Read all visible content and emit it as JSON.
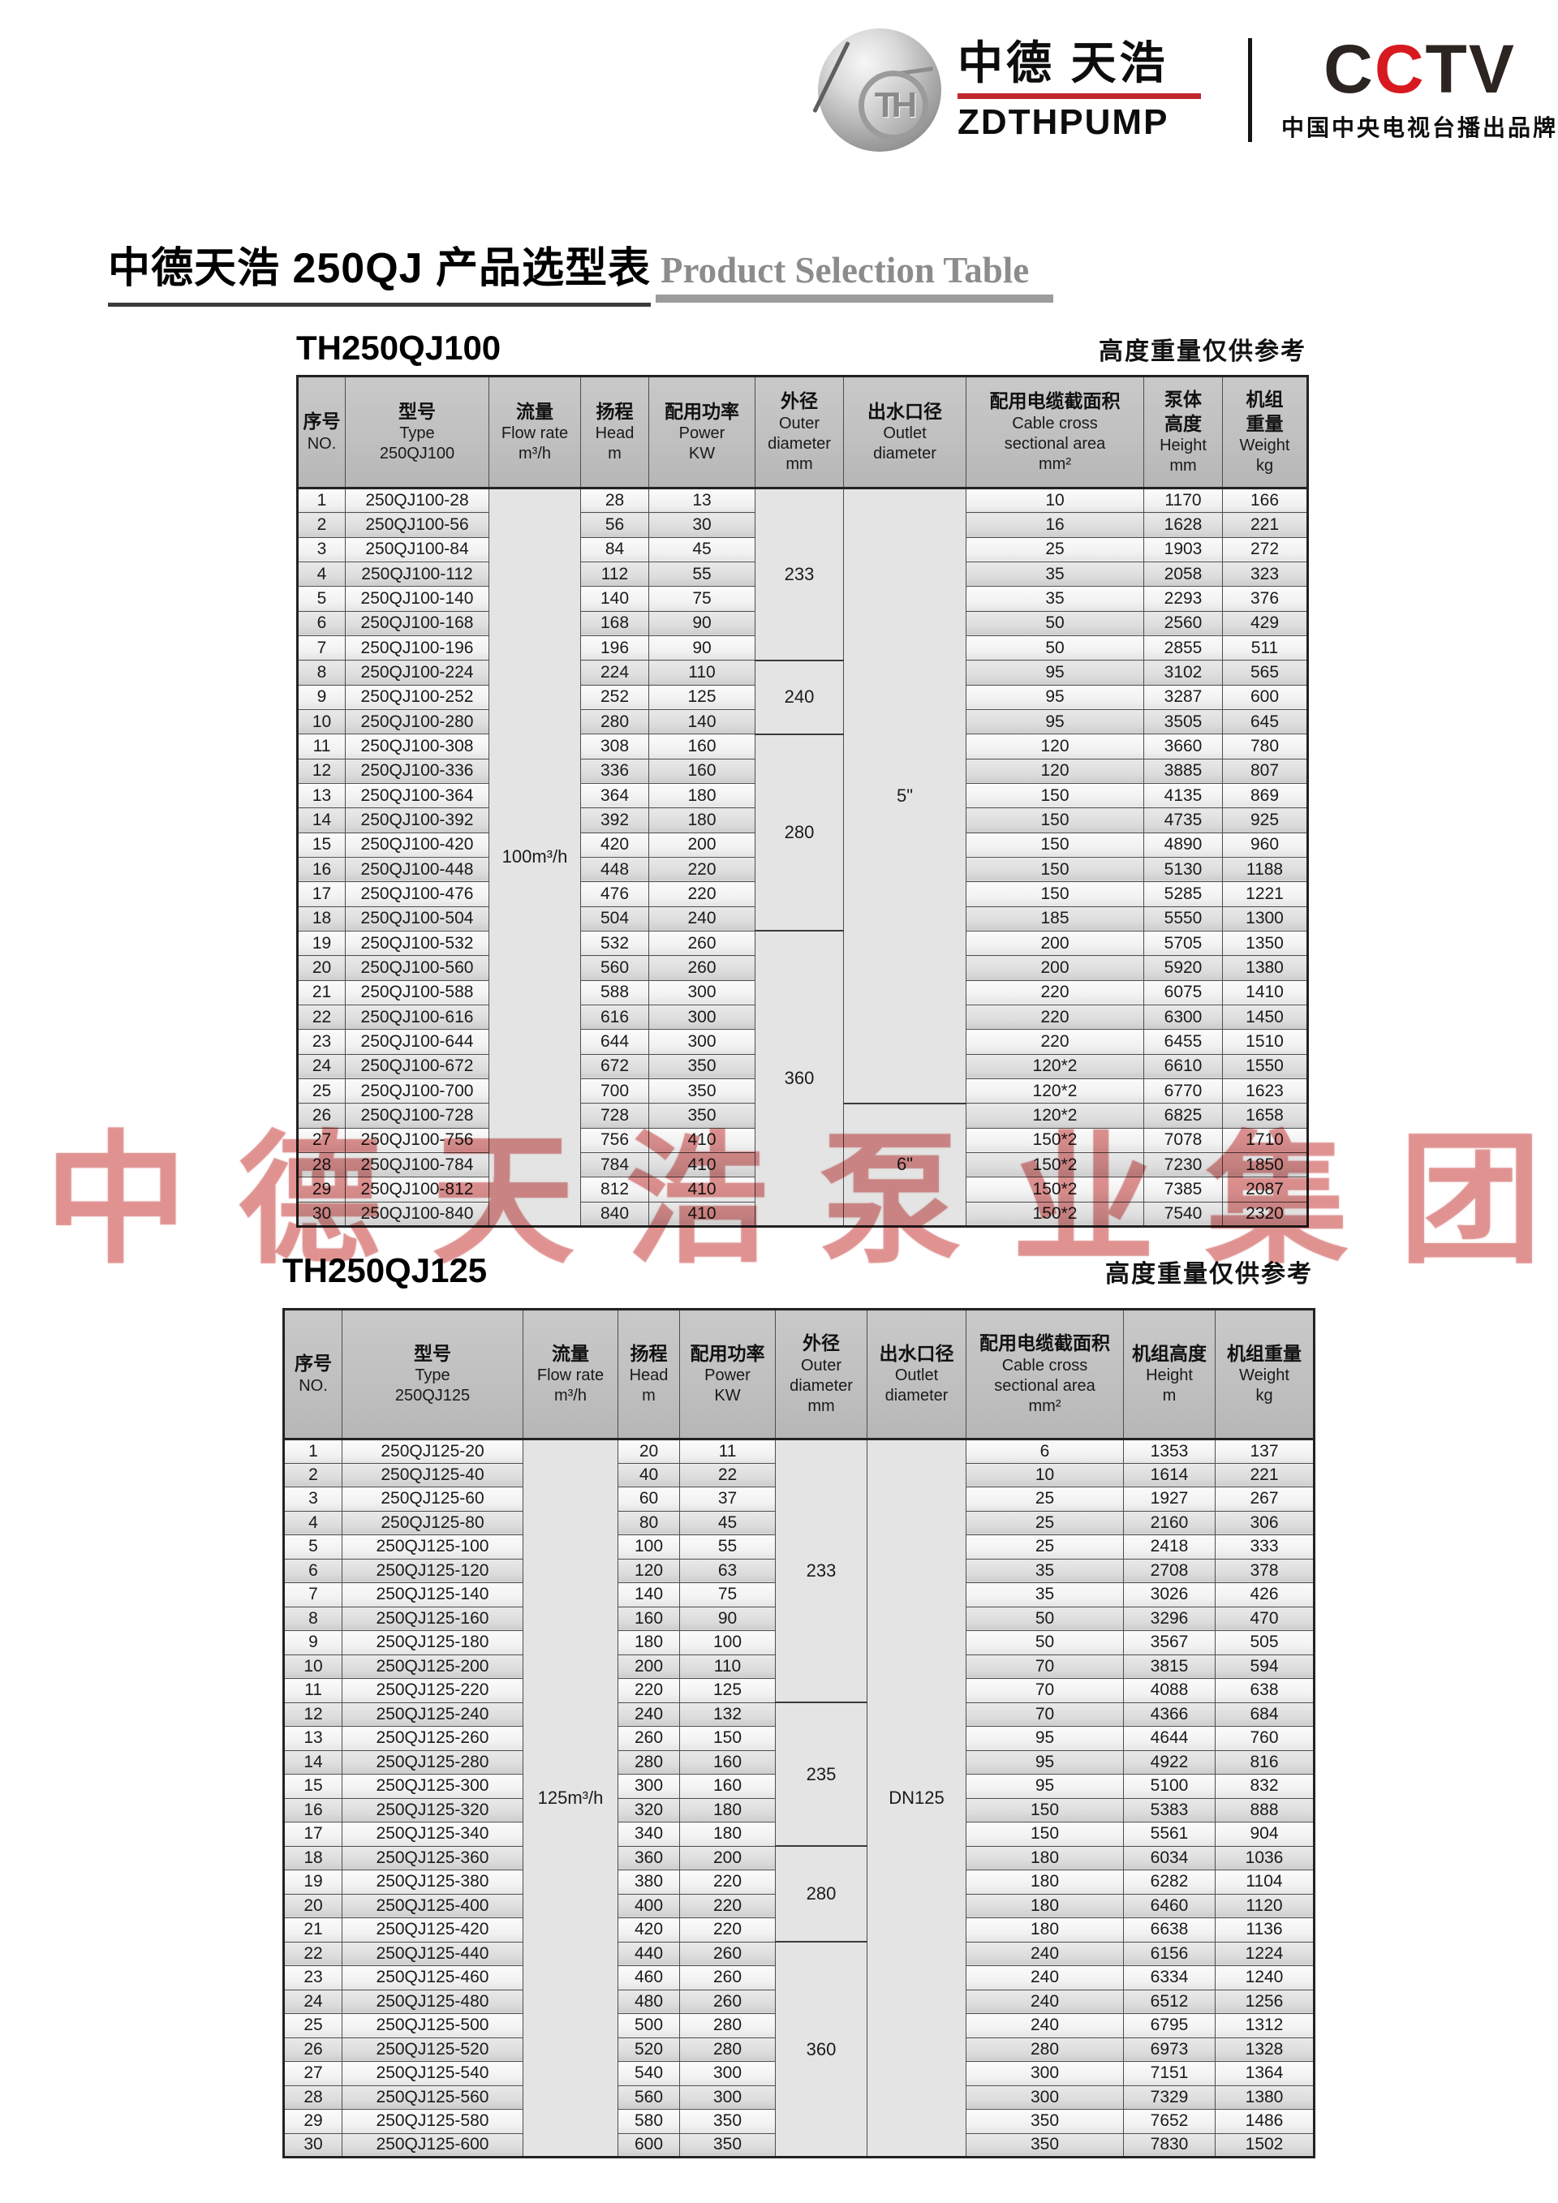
{
  "header": {
    "brand": {
      "monogram": "TH",
      "name": "中德 天浩",
      "sub": "ZDTHPUMP"
    },
    "cctv": {
      "c1": "C",
      "c2": "C",
      "c3": "T",
      "c4": "V",
      "caption": "中国中央电视台播出品牌"
    },
    "colors": {
      "brand_red": "#c1272d",
      "cctv_red": "#d71920"
    }
  },
  "title": {
    "cn": "中德天浩 250QJ 产品选型表",
    "en": "Product Selection Table"
  },
  "watermark": {
    "text": "中德天浩泵业集团",
    "color": "rgba(206,82,80,0.48)"
  },
  "tables": [
    {
      "name": "TH250QJ100",
      "note": "高度重量仅供参考",
      "columns": {
        "no": {
          "cn": [
            "序号"
          ],
          "en": [
            "NO."
          ]
        },
        "type": {
          "cn": [
            "型号"
          ],
          "en": [
            "Type",
            "250QJ100"
          ]
        },
        "flow": {
          "cn": [
            "流量"
          ],
          "en": [
            "Flow rate",
            "m³/h"
          ]
        },
        "head": {
          "cn": [
            "扬程"
          ],
          "en": [
            "Head",
            "m"
          ]
        },
        "power": {
          "cn": [
            "配用功率"
          ],
          "en": [
            "Power",
            "KW"
          ]
        },
        "outer": {
          "cn": [
            "外径"
          ],
          "en": [
            "Outer",
            "diameter",
            "mm"
          ]
        },
        "outlet": {
          "cn": [
            "出水口径"
          ],
          "en": [
            "Outlet",
            "diameter"
          ]
        },
        "cable": {
          "cn": [
            "配用电缆截面积"
          ],
          "en": [
            "Cable cross",
            "sectional area",
            "mm²"
          ]
        },
        "height": {
          "cn": [
            "泵体",
            "高度"
          ],
          "en": [
            "Height",
            "mm"
          ]
        },
        "weight": {
          "cn": [
            "机组",
            "重量"
          ],
          "en": [
            "Weight",
            "kg"
          ]
        }
      },
      "flow_value": "100m³/h",
      "outer_sections": [
        {
          "value": "233",
          "from": 1,
          "to": 7
        },
        {
          "value": "240",
          "from": 8,
          "to": 10
        },
        {
          "value": "280",
          "from": 11,
          "to": 18
        },
        {
          "value": "360",
          "from": 19,
          "to": 30
        }
      ],
      "outlet_sections": [
        {
          "value": "5\"",
          "from": 1,
          "to": 25
        },
        {
          "value": "6\"",
          "from": 26,
          "to": 30
        }
      ],
      "rows": [
        [
          "1",
          "250QJ100-28",
          "28",
          "13",
          "10",
          "1170",
          "166"
        ],
        [
          "2",
          "250QJ100-56",
          "56",
          "30",
          "16",
          "1628",
          "221"
        ],
        [
          "3",
          "250QJ100-84",
          "84",
          "45",
          "25",
          "1903",
          "272"
        ],
        [
          "4",
          "250QJ100-112",
          "112",
          "55",
          "35",
          "2058",
          "323"
        ],
        [
          "5",
          "250QJ100-140",
          "140",
          "75",
          "35",
          "2293",
          "376"
        ],
        [
          "6",
          "250QJ100-168",
          "168",
          "90",
          "50",
          "2560",
          "429"
        ],
        [
          "7",
          "250QJ100-196",
          "196",
          "90",
          "50",
          "2855",
          "511"
        ],
        [
          "8",
          "250QJ100-224",
          "224",
          "110",
          "95",
          "3102",
          "565"
        ],
        [
          "9",
          "250QJ100-252",
          "252",
          "125",
          "95",
          "3287",
          "600"
        ],
        [
          "10",
          "250QJ100-280",
          "280",
          "140",
          "95",
          "3505",
          "645"
        ],
        [
          "11",
          "250QJ100-308",
          "308",
          "160",
          "120",
          "3660",
          "780"
        ],
        [
          "12",
          "250QJ100-336",
          "336",
          "160",
          "120",
          "3885",
          "807"
        ],
        [
          "13",
          "250QJ100-364",
          "364",
          "180",
          "150",
          "4135",
          "869"
        ],
        [
          "14",
          "250QJ100-392",
          "392",
          "180",
          "150",
          "4735",
          "925"
        ],
        [
          "15",
          "250QJ100-420",
          "420",
          "200",
          "150",
          "4890",
          "960"
        ],
        [
          "16",
          "250QJ100-448",
          "448",
          "220",
          "150",
          "5130",
          "1188"
        ],
        [
          "17",
          "250QJ100-476",
          "476",
          "220",
          "150",
          "5285",
          "1221"
        ],
        [
          "18",
          "250QJ100-504",
          "504",
          "240",
          "185",
          "5550",
          "1300"
        ],
        [
          "19",
          "250QJ100-532",
          "532",
          "260",
          "200",
          "5705",
          "1350"
        ],
        [
          "20",
          "250QJ100-560",
          "560",
          "260",
          "200",
          "5920",
          "1380"
        ],
        [
          "21",
          "250QJ100-588",
          "588",
          "300",
          "220",
          "6075",
          "1410"
        ],
        [
          "22",
          "250QJ100-616",
          "616",
          "300",
          "220",
          "6300",
          "1450"
        ],
        [
          "23",
          "250QJ100-644",
          "644",
          "300",
          "220",
          "6455",
          "1510"
        ],
        [
          "24",
          "250QJ100-672",
          "672",
          "350",
          "120*2",
          "6610",
          "1550"
        ],
        [
          "25",
          "250QJ100-700",
          "700",
          "350",
          "120*2",
          "6770",
          "1623"
        ],
        [
          "26",
          "250QJ100-728",
          "728",
          "350",
          "120*2",
          "6825",
          "1658"
        ],
        [
          "27",
          "250QJ100-756",
          "756",
          "410",
          "150*2",
          "7078",
          "1710"
        ],
        [
          "28",
          "250QJ100-784",
          "784",
          "410",
          "150*2",
          "7230",
          "1850"
        ],
        [
          "29",
          "250QJ100-812",
          "812",
          "410",
          "150*2",
          "7385",
          "2087"
        ],
        [
          "30",
          "250QJ100-840",
          "840",
          "410",
          "150*2",
          "7540",
          "2320"
        ]
      ]
    },
    {
      "name": "TH250QJ125",
      "note": "高度重量仅供参考",
      "columns": {
        "no": {
          "cn": [
            "序号"
          ],
          "en": [
            "NO."
          ]
        },
        "type": {
          "cn": [
            "型号"
          ],
          "en": [
            "Type",
            "250QJ125"
          ]
        },
        "flow": {
          "cn": [
            "流量"
          ],
          "en": [
            "Flow rate",
            "m³/h"
          ]
        },
        "head": {
          "cn": [
            "扬程"
          ],
          "en": [
            "Head",
            "m"
          ]
        },
        "power": {
          "cn": [
            "配用功率"
          ],
          "en": [
            "Power",
            "KW"
          ]
        },
        "outer": {
          "cn": [
            "外径"
          ],
          "en": [
            "Outer",
            "diameter",
            "mm"
          ]
        },
        "outlet": {
          "cn": [
            "出水口径"
          ],
          "en": [
            "Outlet",
            "diameter"
          ]
        },
        "cable": {
          "cn": [
            "配用电缆截面积"
          ],
          "en": [
            "Cable cross",
            "sectional area",
            "mm²"
          ]
        },
        "height": {
          "cn": [
            "机组高度"
          ],
          "en": [
            "Height",
            "m"
          ]
        },
        "weight": {
          "cn": [
            "机组重量"
          ],
          "en": [
            "Weight",
            "kg"
          ]
        }
      },
      "flow_value": "125m³/h",
      "outer_sections": [
        {
          "value": "233",
          "from": 1,
          "to": 11
        },
        {
          "value": "235",
          "from": 12,
          "to": 17
        },
        {
          "value": "280",
          "from": 18,
          "to": 21
        },
        {
          "value": "360",
          "from": 22,
          "to": 30
        }
      ],
      "outlet_sections": [
        {
          "value": "DN125",
          "from": 1,
          "to": 30
        }
      ],
      "rows": [
        [
          "1",
          "250QJ125-20",
          "20",
          "11",
          "6",
          "1353",
          "137"
        ],
        [
          "2",
          "250QJ125-40",
          "40",
          "22",
          "10",
          "1614",
          "221"
        ],
        [
          "3",
          "250QJ125-60",
          "60",
          "37",
          "25",
          "1927",
          "267"
        ],
        [
          "4",
          "250QJ125-80",
          "80",
          "45",
          "25",
          "2160",
          "306"
        ],
        [
          "5",
          "250QJ125-100",
          "100",
          "55",
          "25",
          "2418",
          "333"
        ],
        [
          "6",
          "250QJ125-120",
          "120",
          "63",
          "35",
          "2708",
          "378"
        ],
        [
          "7",
          "250QJ125-140",
          "140",
          "75",
          "35",
          "3026",
          "426"
        ],
        [
          "8",
          "250QJ125-160",
          "160",
          "90",
          "50",
          "3296",
          "470"
        ],
        [
          "9",
          "250QJ125-180",
          "180",
          "100",
          "50",
          "3567",
          "505"
        ],
        [
          "10",
          "250QJ125-200",
          "200",
          "110",
          "70",
          "3815",
          "594"
        ],
        [
          "11",
          "250QJ125-220",
          "220",
          "125",
          "70",
          "4088",
          "638"
        ],
        [
          "12",
          "250QJ125-240",
          "240",
          "132",
          "70",
          "4366",
          "684"
        ],
        [
          "13",
          "250QJ125-260",
          "260",
          "150",
          "95",
          "4644",
          "760"
        ],
        [
          "14",
          "250QJ125-280",
          "280",
          "160",
          "95",
          "4922",
          "816"
        ],
        [
          "15",
          "250QJ125-300",
          "300",
          "160",
          "95",
          "5100",
          "832"
        ],
        [
          "16",
          "250QJ125-320",
          "320",
          "180",
          "150",
          "5383",
          "888"
        ],
        [
          "17",
          "250QJ125-340",
          "340",
          "180",
          "150",
          "5561",
          "904"
        ],
        [
          "18",
          "250QJ125-360",
          "360",
          "200",
          "180",
          "6034",
          "1036"
        ],
        [
          "19",
          "250QJ125-380",
          "380",
          "220",
          "180",
          "6282",
          "1104"
        ],
        [
          "20",
          "250QJ125-400",
          "400",
          "220",
          "180",
          "6460",
          "1120"
        ],
        [
          "21",
          "250QJ125-420",
          "420",
          "220",
          "180",
          "6638",
          "1136"
        ],
        [
          "22",
          "250QJ125-440",
          "440",
          "260",
          "240",
          "6156",
          "1224"
        ],
        [
          "23",
          "250QJ125-460",
          "460",
          "260",
          "240",
          "6334",
          "1240"
        ],
        [
          "24",
          "250QJ125-480",
          "480",
          "260",
          "240",
          "6512",
          "1256"
        ],
        [
          "25",
          "250QJ125-500",
          "500",
          "280",
          "240",
          "6795",
          "1312"
        ],
        [
          "26",
          "250QJ125-520",
          "520",
          "280",
          "280",
          "6973",
          "1328"
        ],
        [
          "27",
          "250QJ125-540",
          "540",
          "300",
          "300",
          "7151",
          "1364"
        ],
        [
          "28",
          "250QJ125-560",
          "560",
          "300",
          "300",
          "7329",
          "1380"
        ],
        [
          "29",
          "250QJ125-580",
          "580",
          "350",
          "350",
          "7652",
          "1486"
        ],
        [
          "30",
          "250QJ125-600",
          "600",
          "350",
          "350",
          "7830",
          "1502"
        ]
      ]
    }
  ]
}
